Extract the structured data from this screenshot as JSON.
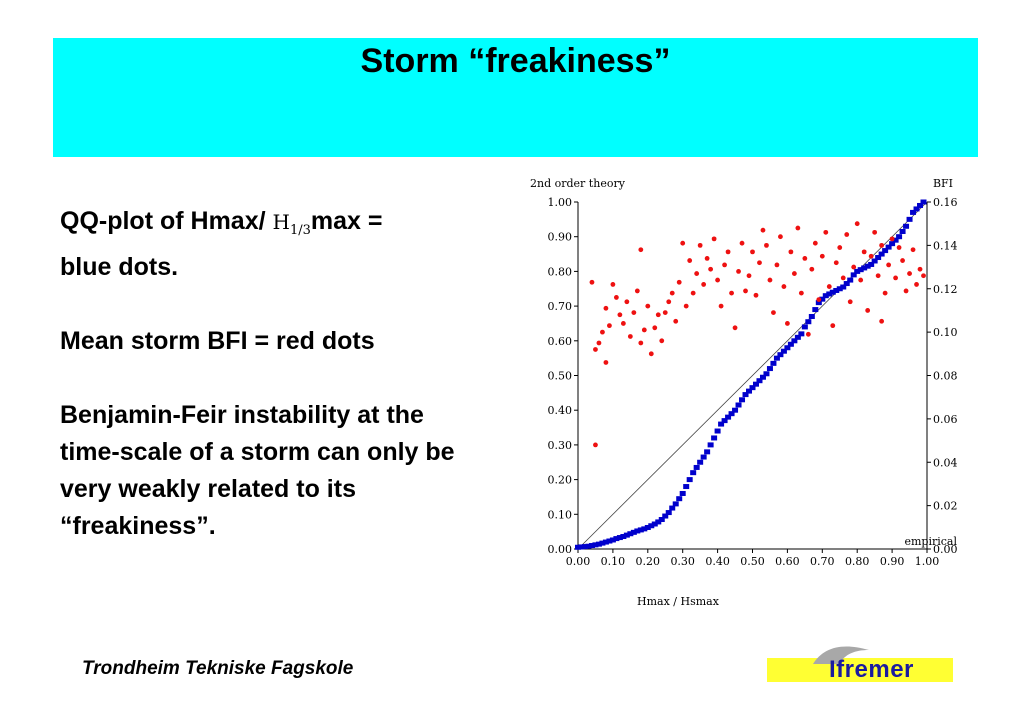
{
  "title": "Storm “freakiness”",
  "bullets": {
    "line1_pre": "QQ-plot of Hmax/",
    "line1_h": "H",
    "line1_sub": "1/3",
    "line1_post": "max =",
    "line1_cont": "blue dots.",
    "line2": "Mean storm BFI = red dots",
    "line3": "Benjamin-Feir instability at the time-scale of a storm can only be very weakly related to its “freakiness”."
  },
  "footer": "Trondheim Tekniske Fagskole",
  "logo": {
    "text": "Ifremer",
    "band_color": "#ffff33",
    "text_color": "#1a1aa0"
  },
  "chart_data": {
    "type": "scatter",
    "left_axis_label": "2nd order theory",
    "right_axis_label": "BFI",
    "xlabel": "Hmax / Hsmax",
    "corner_label": "empirical",
    "xlim": [
      0,
      1
    ],
    "ylim_left": [
      0,
      1
    ],
    "ylim_right": [
      0,
      0.16
    ],
    "x_ticks": [
      "0.00",
      "0.10",
      "0.20",
      "0.30",
      "0.40",
      "0.50",
      "0.60",
      "0.70",
      "0.80",
      "0.90",
      "1.00"
    ],
    "y_left_ticks": [
      "0.00",
      "0.10",
      "0.20",
      "0.30",
      "0.40",
      "0.50",
      "0.60",
      "0.70",
      "0.80",
      "0.90",
      "1.00"
    ],
    "y_right_ticks": [
      "0.00",
      "0.02",
      "0.04",
      "0.06",
      "0.08",
      "0.10",
      "0.12",
      "0.14",
      "0.16"
    ],
    "reference_line": [
      [
        0,
        0
      ],
      [
        1,
        1
      ]
    ],
    "series": [
      {
        "axis": "left",
        "color": "#0000cc",
        "marker": "square",
        "points": [
          [
            0.0,
            0.005
          ],
          [
            0.01,
            0.006
          ],
          [
            0.02,
            0.007
          ],
          [
            0.03,
            0.008
          ],
          [
            0.04,
            0.01
          ],
          [
            0.05,
            0.012
          ],
          [
            0.06,
            0.014
          ],
          [
            0.07,
            0.017
          ],
          [
            0.08,
            0.02
          ],
          [
            0.09,
            0.023
          ],
          [
            0.1,
            0.026
          ],
          [
            0.11,
            0.03
          ],
          [
            0.12,
            0.033
          ],
          [
            0.13,
            0.036
          ],
          [
            0.14,
            0.04
          ],
          [
            0.15,
            0.044
          ],
          [
            0.16,
            0.048
          ],
          [
            0.17,
            0.052
          ],
          [
            0.18,
            0.055
          ],
          [
            0.19,
            0.058
          ],
          [
            0.2,
            0.062
          ],
          [
            0.21,
            0.067
          ],
          [
            0.22,
            0.072
          ],
          [
            0.23,
            0.078
          ],
          [
            0.24,
            0.085
          ],
          [
            0.25,
            0.095
          ],
          [
            0.26,
            0.105
          ],
          [
            0.27,
            0.118
          ],
          [
            0.28,
            0.13
          ],
          [
            0.29,
            0.145
          ],
          [
            0.3,
            0.16
          ],
          [
            0.31,
            0.18
          ],
          [
            0.32,
            0.2
          ],
          [
            0.33,
            0.22
          ],
          [
            0.34,
            0.235
          ],
          [
            0.35,
            0.25
          ],
          [
            0.36,
            0.265
          ],
          [
            0.37,
            0.28
          ],
          [
            0.38,
            0.3
          ],
          [
            0.39,
            0.32
          ],
          [
            0.4,
            0.34
          ],
          [
            0.41,
            0.36
          ],
          [
            0.42,
            0.37
          ],
          [
            0.43,
            0.38
          ],
          [
            0.44,
            0.39
          ],
          [
            0.45,
            0.4
          ],
          [
            0.46,
            0.415
          ],
          [
            0.47,
            0.43
          ],
          [
            0.48,
            0.445
          ],
          [
            0.49,
            0.455
          ],
          [
            0.5,
            0.465
          ],
          [
            0.51,
            0.475
          ],
          [
            0.52,
            0.485
          ],
          [
            0.53,
            0.495
          ],
          [
            0.54,
            0.505
          ],
          [
            0.55,
            0.52
          ],
          [
            0.56,
            0.535
          ],
          [
            0.57,
            0.55
          ],
          [
            0.58,
            0.56
          ],
          [
            0.59,
            0.57
          ],
          [
            0.6,
            0.58
          ],
          [
            0.61,
            0.59
          ],
          [
            0.62,
            0.6
          ],
          [
            0.63,
            0.61
          ],
          [
            0.64,
            0.62
          ],
          [
            0.65,
            0.64
          ],
          [
            0.66,
            0.655
          ],
          [
            0.67,
            0.67
          ],
          [
            0.68,
            0.69
          ],
          [
            0.69,
            0.71
          ],
          [
            0.7,
            0.72
          ],
          [
            0.71,
            0.73
          ],
          [
            0.72,
            0.735
          ],
          [
            0.73,
            0.74
          ],
          [
            0.74,
            0.745
          ],
          [
            0.75,
            0.75
          ],
          [
            0.76,
            0.755
          ],
          [
            0.77,
            0.765
          ],
          [
            0.78,
            0.775
          ],
          [
            0.79,
            0.79
          ],
          [
            0.8,
            0.8
          ],
          [
            0.81,
            0.805
          ],
          [
            0.82,
            0.81
          ],
          [
            0.83,
            0.815
          ],
          [
            0.84,
            0.82
          ],
          [
            0.85,
            0.83
          ],
          [
            0.86,
            0.84
          ],
          [
            0.87,
            0.85
          ],
          [
            0.88,
            0.86
          ],
          [
            0.89,
            0.87
          ],
          [
            0.9,
            0.88
          ],
          [
            0.91,
            0.89
          ],
          [
            0.92,
            0.9
          ],
          [
            0.93,
            0.915
          ],
          [
            0.94,
            0.93
          ],
          [
            0.95,
            0.95
          ],
          [
            0.96,
            0.97
          ],
          [
            0.97,
            0.98
          ],
          [
            0.98,
            0.99
          ],
          [
            0.99,
            1.0
          ]
        ]
      },
      {
        "axis": "right",
        "color": "#ee1111",
        "marker": "dot",
        "points": [
          [
            0.04,
            0.123
          ],
          [
            0.05,
            0.048
          ],
          [
            0.05,
            0.092
          ],
          [
            0.06,
            0.095
          ],
          [
            0.07,
            0.1
          ],
          [
            0.08,
            0.111
          ],
          [
            0.08,
            0.086
          ],
          [
            0.09,
            0.103
          ],
          [
            0.1,
            0.122
          ],
          [
            0.11,
            0.116
          ],
          [
            0.12,
            0.108
          ],
          [
            0.13,
            0.104
          ],
          [
            0.14,
            0.114
          ],
          [
            0.15,
            0.098
          ],
          [
            0.16,
            0.109
          ],
          [
            0.17,
            0.119
          ],
          [
            0.18,
            0.138
          ],
          [
            0.18,
            0.095
          ],
          [
            0.19,
            0.101
          ],
          [
            0.2,
            0.112
          ],
          [
            0.21,
            0.09
          ],
          [
            0.22,
            0.102
          ],
          [
            0.23,
            0.108
          ],
          [
            0.24,
            0.096
          ],
          [
            0.25,
            0.109
          ],
          [
            0.26,
            0.114
          ],
          [
            0.27,
            0.118
          ],
          [
            0.28,
            0.105
          ],
          [
            0.29,
            0.123
          ],
          [
            0.3,
            0.141
          ],
          [
            0.31,
            0.112
          ],
          [
            0.32,
            0.133
          ],
          [
            0.33,
            0.118
          ],
          [
            0.34,
            0.127
          ],
          [
            0.35,
            0.14
          ],
          [
            0.36,
            0.122
          ],
          [
            0.37,
            0.134
          ],
          [
            0.38,
            0.129
          ],
          [
            0.39,
            0.143
          ],
          [
            0.4,
            0.124
          ],
          [
            0.41,
            0.112
          ],
          [
            0.42,
            0.131
          ],
          [
            0.43,
            0.137
          ],
          [
            0.44,
            0.118
          ],
          [
            0.45,
            0.102
          ],
          [
            0.46,
            0.128
          ],
          [
            0.47,
            0.141
          ],
          [
            0.48,
            0.119
          ],
          [
            0.49,
            0.126
          ],
          [
            0.5,
            0.137
          ],
          [
            0.51,
            0.117
          ],
          [
            0.52,
            0.132
          ],
          [
            0.53,
            0.147
          ],
          [
            0.54,
            0.14
          ],
          [
            0.55,
            0.124
          ],
          [
            0.56,
            0.109
          ],
          [
            0.57,
            0.131
          ],
          [
            0.58,
            0.144
          ],
          [
            0.59,
            0.121
          ],
          [
            0.6,
            0.104
          ],
          [
            0.61,
            0.137
          ],
          [
            0.62,
            0.127
          ],
          [
            0.63,
            0.148
          ],
          [
            0.64,
            0.118
          ],
          [
            0.65,
            0.134
          ],
          [
            0.66,
            0.099
          ],
          [
            0.67,
            0.129
          ],
          [
            0.68,
            0.141
          ],
          [
            0.69,
            0.115
          ],
          [
            0.7,
            0.135
          ],
          [
            0.71,
            0.146
          ],
          [
            0.72,
            0.121
          ],
          [
            0.73,
            0.103
          ],
          [
            0.74,
            0.132
          ],
          [
            0.75,
            0.139
          ],
          [
            0.76,
            0.125
          ],
          [
            0.77,
            0.145
          ],
          [
            0.78,
            0.114
          ],
          [
            0.79,
            0.13
          ],
          [
            0.8,
            0.15
          ],
          [
            0.81,
            0.124
          ],
          [
            0.82,
            0.137
          ],
          [
            0.83,
            0.11
          ],
          [
            0.84,
            0.135
          ],
          [
            0.85,
            0.146
          ],
          [
            0.86,
            0.126
          ],
          [
            0.87,
            0.14
          ],
          [
            0.88,
            0.118
          ],
          [
            0.89,
            0.131
          ],
          [
            0.9,
            0.143
          ],
          [
            0.91,
            0.125
          ],
          [
            0.92,
            0.139
          ],
          [
            0.93,
            0.133
          ],
          [
            0.94,
            0.119
          ],
          [
            0.95,
            0.127
          ],
          [
            0.96,
            0.138
          ],
          [
            0.97,
            0.122
          ],
          [
            0.98,
            0.129
          ],
          [
            0.99,
            0.126
          ],
          [
            0.87,
            0.105
          ]
        ]
      }
    ]
  }
}
